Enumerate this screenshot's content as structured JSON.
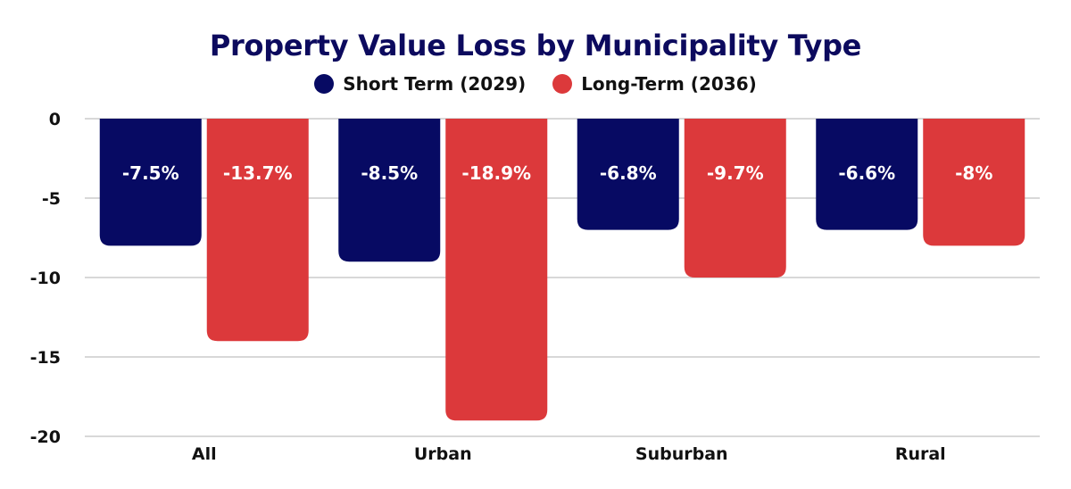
{
  "colors": {
    "title": "#0c0a5e",
    "short": "#070a63",
    "long": "#dc393b",
    "grid": "#cccccc"
  },
  "chart_data": {
    "type": "bar",
    "title": "Property Value Loss by Municipality Type",
    "categories": [
      "All",
      "Urban",
      "Suburban",
      "Rural"
    ],
    "series": [
      {
        "name": "Short Term (2029)",
        "values": [
          -8,
          -9,
          -7,
          -7
        ],
        "labels": [
          "-7.5%",
          "-8.5%",
          "-6.8%",
          "-6.6%"
        ]
      },
      {
        "name": "Long-Term (2036)",
        "values": [
          -14,
          -19,
          -10,
          -8
        ],
        "labels": [
          "-13.7%",
          "-18.9%",
          "-9.7%",
          "-8%"
        ]
      }
    ],
    "yticks": [
      "0",
      "-5",
      "-10",
      "-15",
      "-20"
    ],
    "ylim": [
      -20,
      0
    ],
    "grid": true,
    "legend": "top-center",
    "xlabel": "",
    "ylabel": ""
  }
}
